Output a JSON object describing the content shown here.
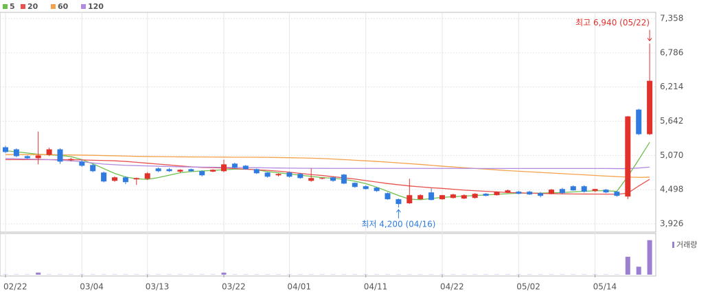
{
  "chart_data": {
    "type": "candlestick",
    "categories": [
      "02/22",
      null,
      null,
      null,
      null,
      null,
      null,
      "03/04",
      null,
      null,
      null,
      null,
      null,
      "03/13",
      null,
      null,
      null,
      null,
      null,
      null,
      "03/22",
      null,
      null,
      null,
      null,
      null,
      "04/01",
      null,
      null,
      null,
      null,
      null,
      null,
      "04/11",
      null,
      null,
      null,
      null,
      null,
      null,
      "04/22",
      null,
      null,
      null,
      null,
      null,
      null,
      "05/02",
      null,
      null,
      null,
      null,
      null,
      null,
      "05/14",
      null,
      null,
      null,
      null,
      null
    ],
    "open": [
      5207,
      5172,
      5058,
      5024,
      5080,
      5172,
      4990,
      4967,
      4910,
      4784,
      4646,
      4704,
      4670,
      4680,
      4853,
      4840,
      4800,
      4840,
      4807,
      4800,
      4807,
      4933,
      4898,
      4841,
      4784,
      4738,
      4784,
      4761,
      4646,
      4680,
      4704,
      4750,
      4612,
      4555,
      4532,
      4440,
      4338,
      4270,
      4338,
      4452,
      4338,
      4360,
      4350,
      4360,
      4430,
      4406,
      4450,
      4464,
      4464,
      4440,
      4429,
      4509,
      4555,
      4555,
      4475,
      4498,
      4464,
      4383,
      5836,
      5425
    ],
    "high": [
      5230,
      5190,
      5070,
      5470,
      5200,
      5190,
      5030,
      5000,
      4930,
      4800,
      4720,
      4720,
      4700,
      4790,
      4870,
      4860,
      4840,
      4850,
      4820,
      4840,
      5000,
      4950,
      4910,
      4850,
      4790,
      4770,
      4800,
      4780,
      4853,
      4700,
      4710,
      4760,
      4620,
      4570,
      4540,
      4450,
      4350,
      4680,
      4420,
      4520,
      4410,
      4430,
      4420,
      4440,
      4440,
      4470,
      4500,
      4480,
      4480,
      4460,
      4510,
      4530,
      4570,
      4570,
      4510,
      4510,
      4480,
      5730,
      5850,
      6940
    ],
    "low": [
      5110,
      5040,
      5010,
      4921,
      5060,
      4930,
      4970,
      4880,
      4790,
      4620,
      4630,
      4590,
      4578,
      4660,
      4790,
      4795,
      4780,
      4795,
      4720,
      4790,
      4790,
      4850,
      4830,
      4760,
      4700,
      4720,
      4700,
      4680,
      4630,
      4670,
      4630,
      4590,
      4530,
      4500,
      4460,
      4330,
      4200,
      4260,
      4330,
      4320,
      4330,
      4350,
      4340,
      4350,
      4390,
      4400,
      4440,
      4420,
      4410,
      4370,
      4420,
      4430,
      4480,
      4450,
      4460,
      4440,
      4380,
      4340,
      5410,
      5410
    ],
    "close": [
      5127,
      5058,
      5024,
      5070,
      5172,
      4967,
      5010,
      4898,
      4807,
      4635,
      4704,
      4624,
      4692,
      4772,
      4807,
      4807,
      4830,
      4807,
      4738,
      4830,
      4921,
      4864,
      4841,
      4772,
      4715,
      4761,
      4715,
      4692,
      4692,
      4692,
      4646,
      4600,
      4543,
      4509,
      4475,
      4338,
      4258,
      4406,
      4406,
      4326,
      4406,
      4418,
      4406,
      4429,
      4395,
      4464,
      4486,
      4429,
      4418,
      4395,
      4498,
      4441,
      4486,
      4464,
      4509,
      4452,
      4395,
      5722,
      5425,
      6317
    ],
    "volume": [
      0.3,
      0.3,
      0.3,
      3,
      0.3,
      0.3,
      0.3,
      0.3,
      0.3,
      0.3,
      0.3,
      0.3,
      0.3,
      0.3,
      0.3,
      0.3,
      0.3,
      0.3,
      0.3,
      0.3,
      3,
      0.3,
      0.3,
      0.3,
      0.3,
      0.3,
      0.3,
      0.3,
      0.3,
      0.3,
      0.3,
      0.3,
      0.3,
      0.3,
      0.3,
      0.3,
      0.3,
      0.3,
      0.3,
      0.3,
      0.3,
      0.3,
      0.3,
      0.3,
      0.3,
      0.3,
      0.3,
      0.3,
      0.3,
      0.3,
      0.3,
      0.3,
      0.3,
      0.3,
      0.3,
      0.3,
      0.3,
      27,
      12,
      52
    ],
    "volume_ylim": [
      0,
      60
    ],
    "volume_label": "거래량",
    "volume_color": "#9b7fd0",
    "up_color": "#e0312b",
    "down_color": "#2f7be0",
    "series": [
      {
        "name": "5",
        "color": "#6cc04a",
        "values": [
          5150,
          5130,
          5110,
          5090,
          5080,
          5070,
          5050,
          5000,
          4930,
          4850,
          4770,
          4710,
          4680,
          4670,
          4700,
          4740,
          4780,
          4800,
          4810,
          4820,
          4830,
          4840,
          4840,
          4830,
          4800,
          4780,
          4760,
          4740,
          4720,
          4700,
          4690,
          4670,
          4640,
          4600,
          4540,
          4470,
          4400,
          4340,
          4330,
          4350,
          4370,
          4380,
          4390,
          4400,
          4410,
          4420,
          4430,
          4440,
          4440,
          4440,
          4445,
          4450,
          4460,
          4470,
          4480,
          4480,
          4470,
          4720,
          5000,
          5290
        ]
      },
      {
        "name": "20",
        "color": "#e8514d",
        "values": [
          5000,
          5000,
          5000,
          5000,
          5000,
          5000,
          5000,
          4995,
          4990,
          4985,
          4980,
          4970,
          4955,
          4940,
          4925,
          4910,
          4895,
          4880,
          4870,
          4865,
          4860,
          4850,
          4840,
          4830,
          4820,
          4807,
          4790,
          4770,
          4750,
          4735,
          4715,
          4695,
          4675,
          4650,
          4625,
          4600,
          4580,
          4560,
          4545,
          4530,
          4520,
          4505,
          4490,
          4480,
          4470,
          4460,
          4450,
          4445,
          4440,
          4435,
          4430,
          4428,
          4426,
          4425,
          4424,
          4423,
          4420,
          4440,
          4560,
          4670
        ]
      },
      {
        "name": "60",
        "color": "#f5a04a",
        "values": [
          5085,
          5085,
          5085,
          5085,
          5085,
          5080,
          5078,
          5075,
          5072,
          5068,
          5065,
          5060,
          5055,
          5052,
          5050,
          5048,
          5046,
          5045,
          5044,
          5043,
          5042,
          5040,
          5040,
          5040,
          5038,
          5035,
          5032,
          5028,
          5024,
          5018,
          5010,
          5000,
          4990,
          4980,
          4970,
          4958,
          4945,
          4932,
          4920,
          4905,
          4890,
          4878,
          4865,
          4852,
          4840,
          4828,
          4816,
          4806,
          4796,
          4786,
          4776,
          4766,
          4756,
          4746,
          4736,
          4726,
          4716,
          4708,
          4704,
          4706
        ]
      },
      {
        "name": "120",
        "color": "#b08be0",
        "values": [
          5020,
          5015,
          5010,
          5005,
          5000,
          4990,
          4980,
          4965,
          4945,
          4925,
          4915,
          4905,
          4900,
          4895,
          4890,
          4885,
          4880,
          4877,
          4875,
          4873,
          4870,
          4868,
          4866,
          4864,
          4862,
          4860,
          4858,
          4856,
          4855,
          4854,
          4853,
          4853,
          4853,
          4853,
          4853,
          4853,
          4853,
          4853,
          4853,
          4853,
          4853,
          4853,
          4853,
          4852,
          4852,
          4852,
          4852,
          4852,
          4852,
          4852,
          4852,
          4852,
          4852,
          4852,
          4852,
          4852,
          4850,
          4850,
          4860,
          4875
        ]
      }
    ],
    "ylim": [
      3789,
      7461
    ],
    "yticks": [
      {
        "value": 3926,
        "label": "3,926"
      },
      {
        "value": 4498,
        "label": "4,498"
      },
      {
        "value": 5070,
        "label": "5,070"
      },
      {
        "value": 5642,
        "label": "5,642"
      },
      {
        "value": 6214,
        "label": "6,214"
      },
      {
        "value": 6786,
        "label": "6,786"
      },
      {
        "value": 7358,
        "label": "7,358"
      }
    ],
    "high_annotation": {
      "text": "최고 6,940 (05/22)",
      "value": 6940,
      "color": "#e0312b"
    },
    "low_annotation": {
      "text": "최저 4,200 (04/16)",
      "value": 4200,
      "color": "#2f7be0"
    },
    "grid": true
  }
}
